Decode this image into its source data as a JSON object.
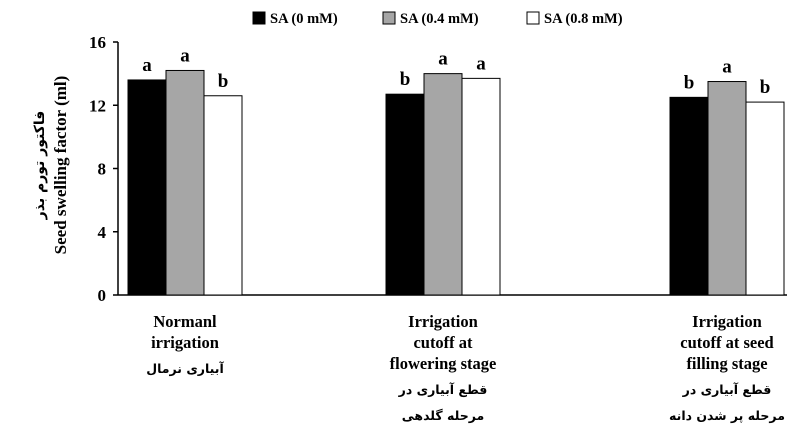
{
  "chart_data": {
    "type": "bar",
    "categories": [
      [
        "Normanl",
        "irrigation"
      ],
      [
        "Irrigation",
        "cutoff at",
        "flowering stage"
      ],
      [
        "Irrigation",
        "cutoff at seed",
        "filling stage"
      ]
    ],
    "categories_fa": [
      [
        "آبیاری نرمال"
      ],
      [
        "قطع آبیاری در",
        "مرحله گلدهی"
      ],
      [
        "قطع آبیاری در",
        "مرحله پر شدن دانه"
      ]
    ],
    "series": [
      {
        "name": "SA (0 mM)",
        "color": "#000000",
        "values": [
          13.6,
          12.7,
          12.5
        ],
        "letters": [
          "a",
          "b",
          "b"
        ]
      },
      {
        "name": "SA (0.4 mM)",
        "color": "#a6a6a6",
        "values": [
          14.2,
          14.0,
          13.5
        ],
        "letters": [
          "a",
          "a",
          "a"
        ]
      },
      {
        "name": "SA (0.8 mM)",
        "color": "#ffffff",
        "values": [
          12.6,
          13.7,
          12.2
        ],
        "letters": [
          "b",
          "a",
          "b"
        ]
      }
    ],
    "ylabel": "Seed swelling factor (ml)",
    "ylabel_fa": "فاکتور تورم بذر",
    "ylim": [
      0,
      16
    ],
    "yticks": [
      "0",
      "4",
      "8",
      "12",
      "16"
    ],
    "legend_position": "top",
    "grid": false
  }
}
